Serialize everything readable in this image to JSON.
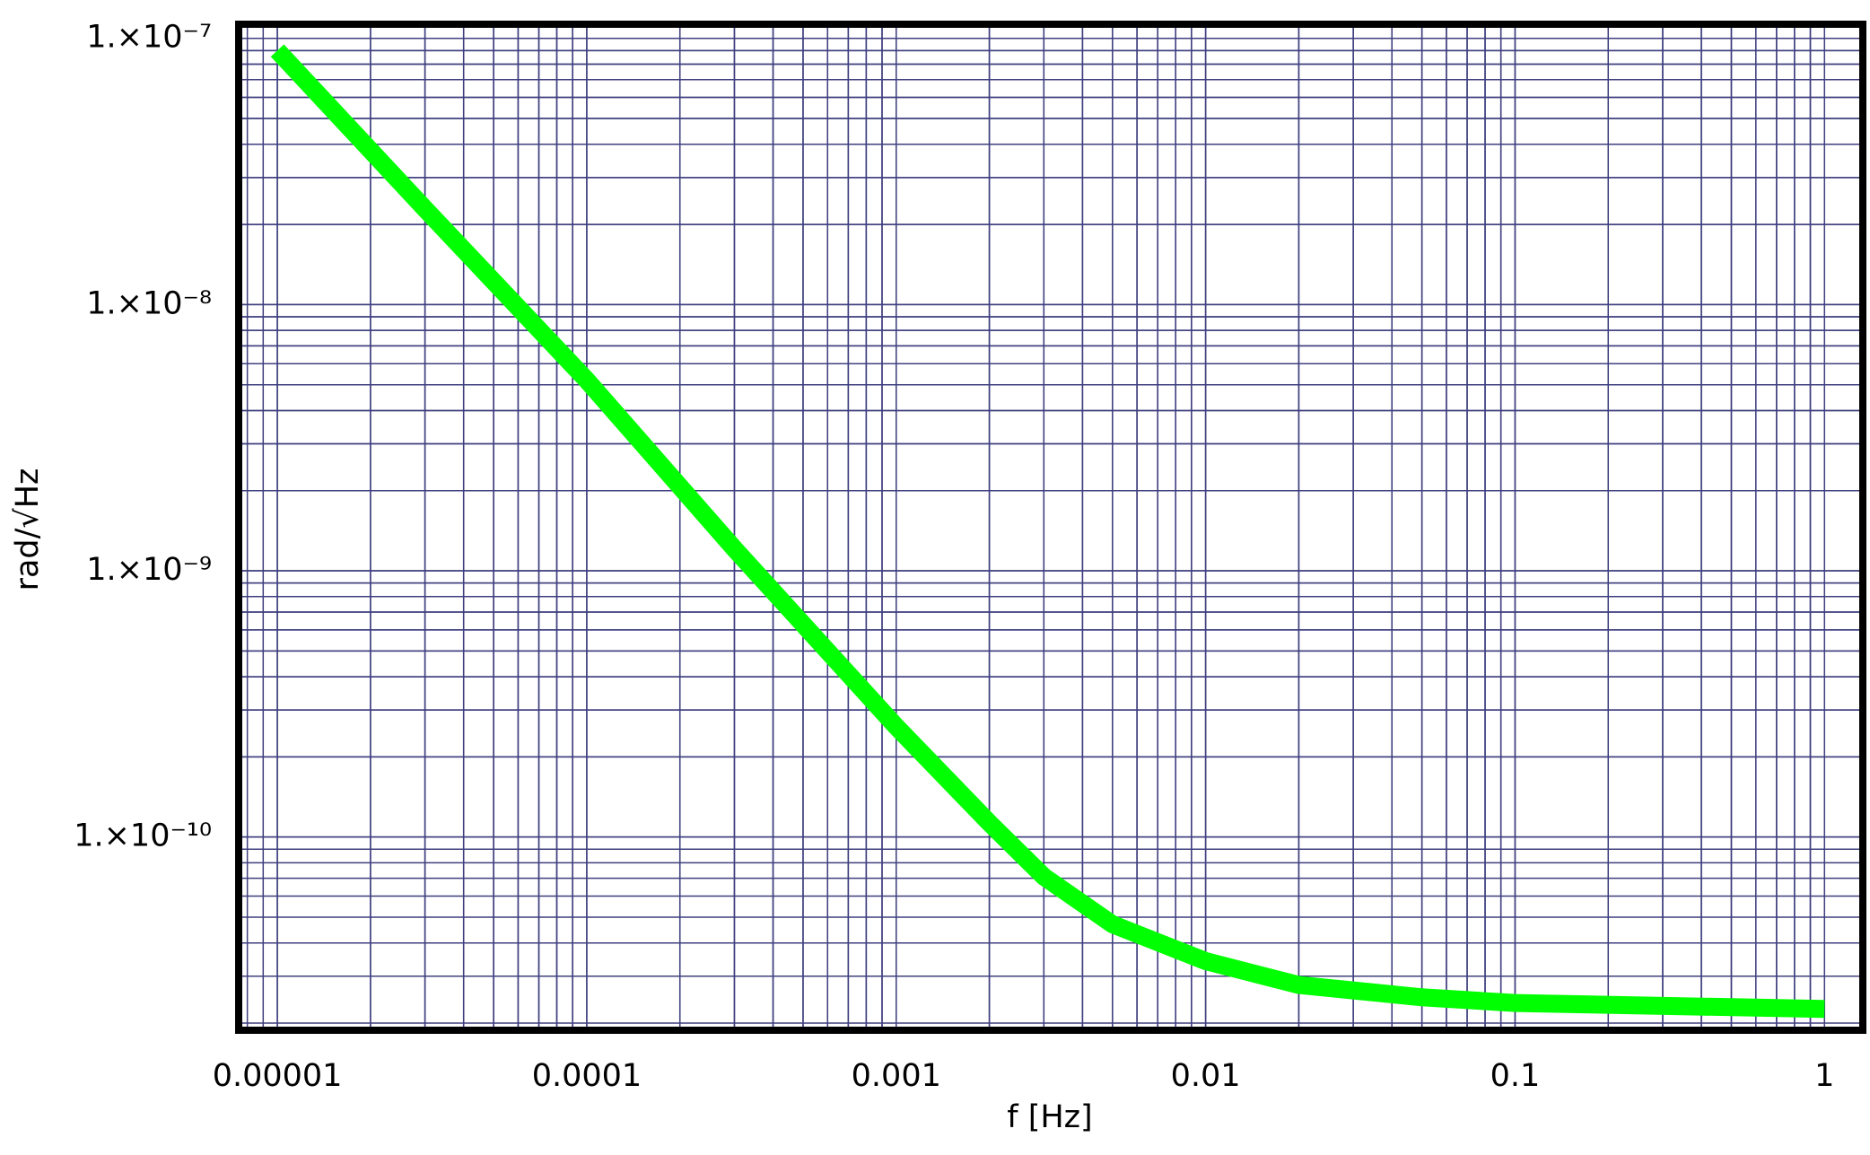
{
  "chart_data": {
    "type": "line",
    "x_label": "f [Hz]",
    "y_label": "rad/√Hz",
    "x_log": true,
    "y_log": true,
    "grid": true,
    "minor_grid": true,
    "grid_color": "#3f3f7f",
    "frame_color": "#000000",
    "xlim": [
      7.5e-06,
      1.33
    ],
    "ylim": [
      1.88e-11,
      1.13e-07
    ],
    "xticks": [
      1e-05,
      0.0001,
      0.001,
      0.01,
      0.1,
      1
    ],
    "yticks": [
      {
        "value": 1e-07,
        "label": "1.×10⁻⁷"
      },
      {
        "value": 1e-08,
        "label": "1.×10⁻⁸"
      },
      {
        "value": 1e-09,
        "label": "1.×10⁻⁹"
      },
      {
        "value": 1e-10,
        "label": "1.×10⁻¹⁰"
      }
    ],
    "x": [
      1e-05,
      3e-05,
      0.0001,
      0.0003,
      0.001,
      0.002,
      0.003,
      0.005,
      0.01,
      0.02,
      0.05,
      0.1,
      1
    ],
    "series": [
      {
        "name": "rad/√Hz",
        "color": "#00ff00",
        "values": [
          9e-08,
          2.29e-08,
          5.2e-09,
          1.21e-09,
          2.6e-10,
          1.13e-10,
          7.1e-11,
          4.7e-11,
          3.42e-11,
          2.78e-11,
          2.5e-11,
          2.38e-11,
          2.26e-11
        ]
      }
    ]
  }
}
